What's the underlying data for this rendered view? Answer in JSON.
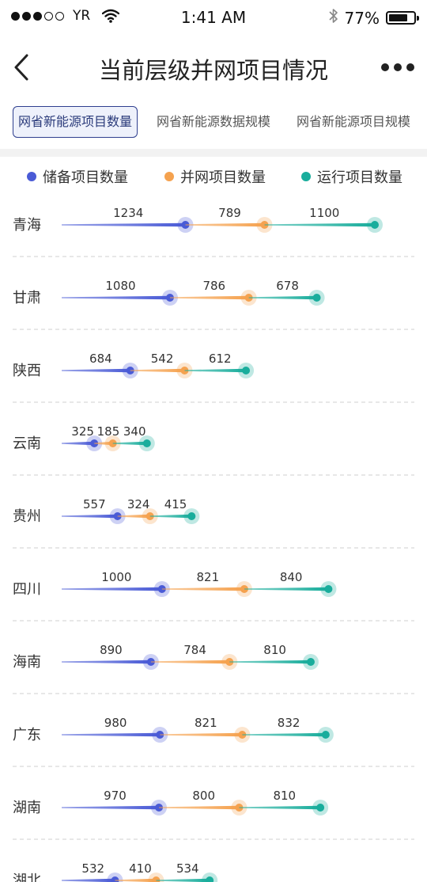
{
  "status_bar": {
    "carrier": "YR",
    "time": "1:41 AM",
    "battery": "77%",
    "battery_level": 0.77,
    "signal_bars": 3,
    "signal_total": 5
  },
  "nav": {
    "title": "当前层级并网项目情况",
    "back_icon": "chevron-left-icon",
    "more_icon": "more-dots-icon"
  },
  "tabs": [
    {
      "label": "网省新能源项目数量",
      "active": true
    },
    {
      "label": "网省新能源数据规模",
      "active": false
    },
    {
      "label": "网省新能源项目规模",
      "active": false
    }
  ],
  "colors": {
    "reserve": "#4a5bd6",
    "grid": "#f5a24f",
    "operating": "#19ad9c"
  },
  "chart_data": {
    "type": "bar",
    "orientation": "horizontal-stacked",
    "legend_position": "top",
    "categories": [
      "青海",
      "甘肃",
      "陕西",
      "云南",
      "贵州",
      "四川",
      "海南",
      "广东",
      "湖南",
      "湖北"
    ],
    "series": [
      {
        "name": "储备项目数量",
        "color": "#4a5bd6",
        "values": [
          1234,
          1080,
          684,
          325,
          557,
          1000,
          890,
          980,
          970,
          532
        ]
      },
      {
        "name": "并网项目数量",
        "color": "#f5a24f",
        "values": [
          789,
          786,
          542,
          185,
          324,
          821,
          784,
          821,
          800,
          410
        ]
      },
      {
        "name": "运行项目数量",
        "color": "#19ad9c",
        "values": [
          1100,
          678,
          612,
          340,
          415,
          840,
          810,
          832,
          810,
          534
        ]
      }
    ]
  }
}
